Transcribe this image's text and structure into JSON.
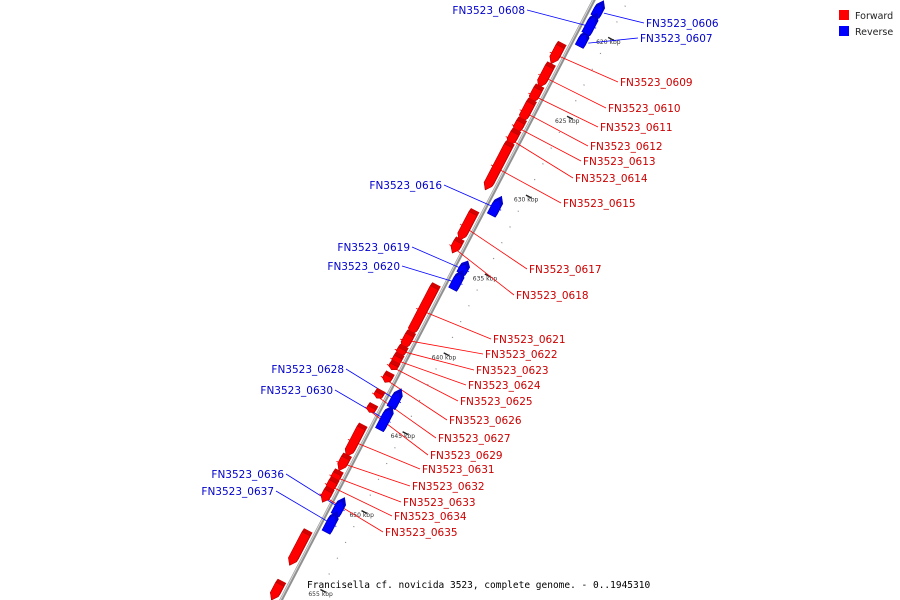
{
  "legend": {
    "items": [
      {
        "label": "Forward",
        "color": "#ff0000"
      },
      {
        "label": "Reverse",
        "color": "#0000ff"
      }
    ]
  },
  "caption": "Francisella cf. novicida 3523, complete genome. - 0..1945310",
  "axis": {
    "start_kbp": 618.0,
    "end_kbp": 656.8,
    "unit": "kbp"
  },
  "ticks": [
    {
      "kbp": 620,
      "label": "620 kbp"
    },
    {
      "kbp": 625,
      "label": "625 kbp"
    },
    {
      "kbp": 630,
      "label": "630 kbp"
    },
    {
      "kbp": 635,
      "label": "635 kbp"
    },
    {
      "kbp": 640,
      "label": "640 kbp"
    },
    {
      "kbp": 645,
      "label": "645 kbp"
    },
    {
      "kbp": 650,
      "label": "650 kbp"
    },
    {
      "kbp": 655,
      "label": "655 kbp"
    }
  ],
  "genes": [
    {
      "id": "FN3523_0606",
      "strand": "reverse",
      "start_kbp": 618.5,
      "end_kbp": 619.3
    },
    {
      "id": "FN3523_0607",
      "strand": "reverse",
      "start_kbp": 620.4,
      "end_kbp": 621.2
    },
    {
      "id": "FN3523_0608",
      "strand": "reverse",
      "start_kbp": 619.3,
      "end_kbp": 620.4
    },
    {
      "id": "FN3523_0609",
      "strand": "forward",
      "start_kbp": 621.7,
      "end_kbp": 622.8
    },
    {
      "id": "FN3523_0610",
      "strand": "forward",
      "start_kbp": 623.0,
      "end_kbp": 624.3
    },
    {
      "id": "FN3523_0611",
      "strand": "forward",
      "start_kbp": 624.4,
      "end_kbp": 625.3
    },
    {
      "id": "FN3523_0612",
      "strand": "forward",
      "start_kbp": 625.3,
      "end_kbp": 626.5
    },
    {
      "id": "FN3523_0613",
      "strand": "forward",
      "start_kbp": 626.5,
      "end_kbp": 627.2
    },
    {
      "id": "FN3523_0614",
      "strand": "forward",
      "start_kbp": 627.2,
      "end_kbp": 628.0
    },
    {
      "id": "FN3523_0615",
      "strand": "forward",
      "start_kbp": 628.0,
      "end_kbp": 630.8
    },
    {
      "id": "FN3523_0616",
      "strand": "reverse",
      "start_kbp": 630.9,
      "end_kbp": 631.9
    },
    {
      "id": "FN3523_0617",
      "strand": "forward",
      "start_kbp": 632.3,
      "end_kbp": 634.0
    },
    {
      "id": "FN3523_0618",
      "strand": "forward",
      "start_kbp": 634.1,
      "end_kbp": 634.8
    },
    {
      "id": "FN3523_0619",
      "strand": "reverse",
      "start_kbp": 635.0,
      "end_kbp": 635.6
    },
    {
      "id": "FN3523_0620",
      "strand": "reverse",
      "start_kbp": 635.6,
      "end_kbp": 636.6
    },
    {
      "id": "FN3523_0621",
      "strand": "forward",
      "start_kbp": 637.0,
      "end_kbp": 640.0
    },
    {
      "id": "FN3523_0622",
      "strand": "forward",
      "start_kbp": 640.0,
      "end_kbp": 640.9
    },
    {
      "id": "FN3523_0623",
      "strand": "forward",
      "start_kbp": 640.9,
      "end_kbp": 641.3
    },
    {
      "id": "FN3523_0624",
      "strand": "forward",
      "start_kbp": 641.4,
      "end_kbp": 641.9
    },
    {
      "id": "FN3523_0625",
      "strand": "forward",
      "start_kbp": 641.9,
      "end_kbp": 642.2
    },
    {
      "id": "FN3523_0626",
      "strand": "forward",
      "start_kbp": 642.6,
      "end_kbp": 643.0
    },
    {
      "id": "FN3523_0627",
      "strand": "forward",
      "start_kbp": 643.7,
      "end_kbp": 644.0
    },
    {
      "id": "FN3523_0628",
      "strand": "reverse",
      "start_kbp": 643.1,
      "end_kbp": 644.1
    },
    {
      "id": "FN3523_0629",
      "strand": "forward",
      "start_kbp": 644.6,
      "end_kbp": 644.9
    },
    {
      "id": "FN3523_0630",
      "strand": "reverse",
      "start_kbp": 644.2,
      "end_kbp": 645.5
    },
    {
      "id": "FN3523_0631",
      "strand": "forward",
      "start_kbp": 645.9,
      "end_kbp": 647.7
    },
    {
      "id": "FN3523_0632",
      "strand": "forward",
      "start_kbp": 647.8,
      "end_kbp": 648.6
    },
    {
      "id": "FN3523_0633",
      "strand": "forward",
      "start_kbp": 648.8,
      "end_kbp": 649.3
    },
    {
      "id": "FN3523_0634",
      "strand": "forward",
      "start_kbp": 649.3,
      "end_kbp": 649.9
    },
    {
      "id": "FN3523_0635",
      "strand": "forward",
      "start_kbp": 649.9,
      "end_kbp": 650.6
    },
    {
      "id": "FN3523_0636",
      "strand": "reverse",
      "start_kbp": 650.0,
      "end_kbp": 650.9
    },
    {
      "id": "FN3523_0637",
      "strand": "reverse",
      "start_kbp": 650.9,
      "end_kbp": 652.0
    },
    {
      "id": "",
      "strand": "forward",
      "start_kbp": 652.6,
      "end_kbp": 654.6
    },
    {
      "id": "",
      "strand": "forward",
      "start_kbp": 655.8,
      "end_kbp": 656.8
    }
  ]
}
